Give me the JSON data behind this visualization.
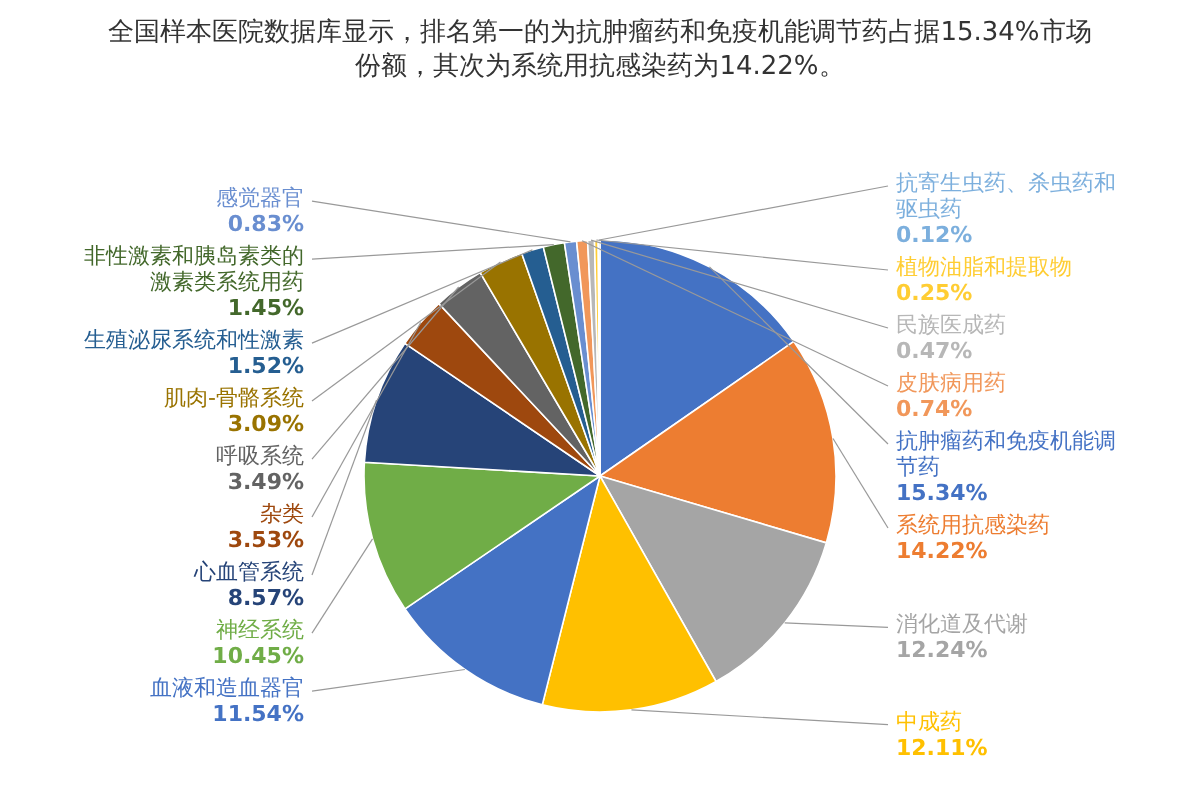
{
  "chart_data": {
    "type": "pie",
    "title": "全国样本医院数据库显示，排名第一的为抗肿瘤药和免疫机能调节药占据15.34%市场份额，其次为系统用抗感染药为14.22%。",
    "categories": [
      "抗肿瘤药和免疫机能调节药",
      "系统用抗感染药",
      "消化道及代谢",
      "中成药",
      "血液和造血器官",
      "神经系统",
      "心血管系统",
      "杂类",
      "呼吸系统",
      "肌肉-骨骼系统",
      "生殖泌尿系统和性激素",
      "非性激素和胰岛素类的激素类系统用药",
      "感觉器官",
      "皮肤病用药",
      "民族医成药",
      "植物油脂和提取物",
      "抗寄生虫药、杀虫药和驱虫药"
    ],
    "values": [
      15.34,
      14.22,
      12.24,
      12.11,
      11.54,
      10.45,
      8.57,
      3.53,
      3.49,
      3.09,
      1.52,
      1.45,
      0.83,
      0.74,
      0.47,
      0.25,
      0.12
    ],
    "value_labels": [
      "15.34%",
      "14.22%",
      "12.24%",
      "12.11%",
      "11.54%",
      "10.45%",
      "8.57%",
      "3.53%",
      "3.49%",
      "3.09%",
      "1.52%",
      "1.45%",
      "0.83%",
      "0.74%",
      "0.47%",
      "0.25%",
      "0.12%"
    ],
    "colors": [
      "#4472c4",
      "#ed7d31",
      "#a5a5a5",
      "#ffc000",
      "#4472c4",
      "#70ad47",
      "#264478",
      "#9e480e",
      "#636363",
      "#997300",
      "#255e91",
      "#43682b",
      "#698ed0",
      "#f1975a",
      "#b7b7b7",
      "#ffcd33",
      "#7cafdd"
    ]
  }
}
